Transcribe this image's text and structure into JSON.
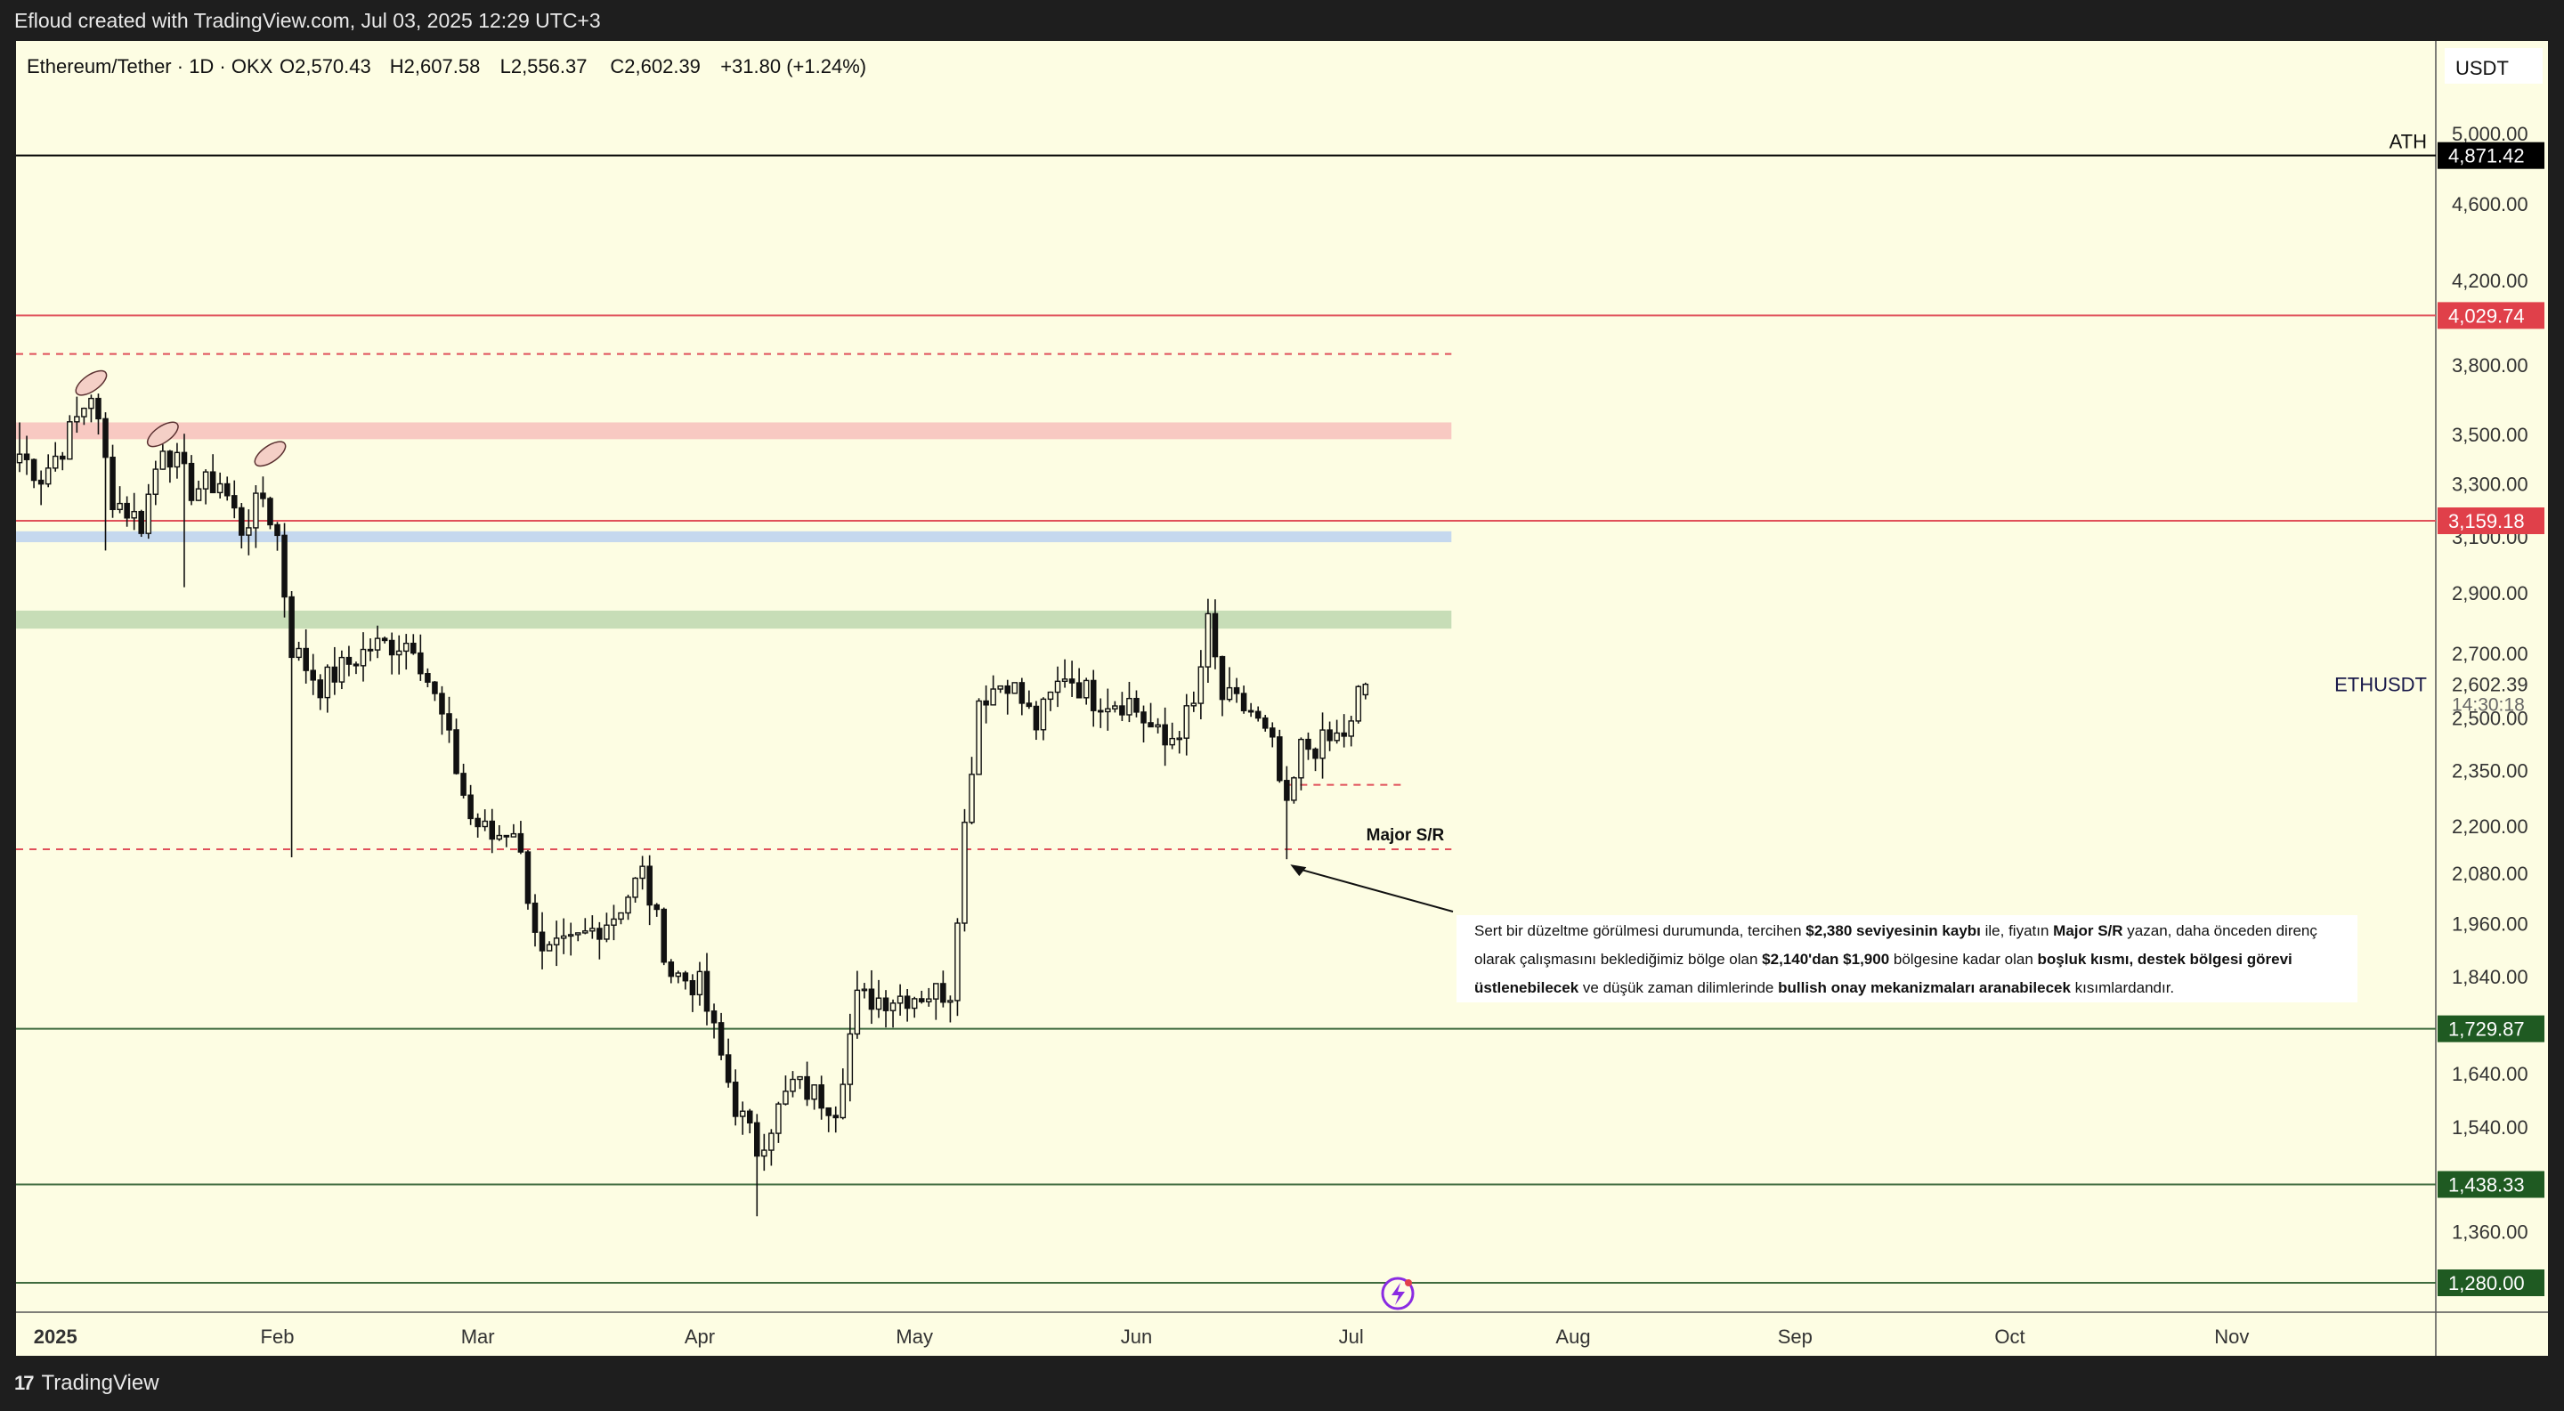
{
  "banner": {
    "text": "Efloud created with TradingView.com, Jul 03, 2025 12:29 UTC+3"
  },
  "footer": {
    "logo_text": "TradingView"
  },
  "currency_box": "USDT",
  "colors": {
    "background": "#fdfde3",
    "candle": "#111111",
    "red_line": "#e0505a",
    "green_line": "#3f6b3f",
    "red_zone": "#f8c9c2",
    "blue_zone": "#c5d8ee",
    "green_zone": "#c7ddb7",
    "label_red": "#e0404a",
    "label_green": "#1f5a22",
    "label_black": "#000000"
  },
  "annotation": {
    "major_sr": "Major S/R",
    "ath": "ATH",
    "symbol_tag": "ETHUSDT",
    "countdown": "14:30:18",
    "note_parts": [
      {
        "t": "Sert bir düzeltme görülmesi durumunda, tercihen ",
        "b": false
      },
      {
        "t": "$2,380 seviyesinin kaybı",
        "b": true
      },
      {
        "t": " ile, fiyatın ",
        "b": false
      },
      {
        "t": "Major S/R",
        "b": true
      },
      {
        "t": " yazan, daha önceden direnç olarak çalışmasını beklediğimiz bölge olan ",
        "b": false
      },
      {
        "t": "$2,140'dan $1,900",
        "b": true
      },
      {
        "t": " bölgesine kadar olan ",
        "b": false
      },
      {
        "t": "boşluk kısmı, destek bölgesi görevi üstlenebilecek",
        "b": true
      },
      {
        "t": " ve düşük zaman dilimlerinde ",
        "b": false
      },
      {
        "t": "bullish onay mekanizmaları aranabilecek",
        "b": true
      },
      {
        "t": " kısımlardandır.",
        "b": false
      }
    ]
  },
  "chart_data": {
    "type": "candlestick",
    "title": "Ethereum/Tether · 1D · OKX",
    "ohlc_header": {
      "open": "O2,570.43",
      "high": "H2,607.58",
      "low": "L2,556.37",
      "close": "C2,602.39",
      "change": "+31.80 (+1.24%)"
    },
    "y_scale": "log",
    "ylim": [
      1260,
      5600
    ],
    "y_ticks": [
      {
        "v": 5000,
        "label": "5,000.00"
      },
      {
        "v": 4600,
        "label": "4,600.00"
      },
      {
        "v": 4200,
        "label": "4,200.00"
      },
      {
        "v": 3800,
        "label": "3,800.00"
      },
      {
        "v": 3500,
        "label": "3,500.00"
      },
      {
        "v": 3300,
        "label": "3,300.00"
      },
      {
        "v": 3100,
        "label": "3,100.00"
      },
      {
        "v": 2900,
        "label": "2,900.00"
      },
      {
        "v": 2700,
        "label": "2,700.00"
      },
      {
        "v": 2500,
        "label": "2,500.00"
      },
      {
        "v": 2350,
        "label": "2,350.00"
      },
      {
        "v": 2200,
        "label": "2,200.00"
      },
      {
        "v": 2080,
        "label": "2,080.00"
      },
      {
        "v": 1960,
        "label": "1,960.00"
      },
      {
        "v": 1840,
        "label": "1,840.00"
      },
      {
        "v": 1640,
        "label": "1,640.00"
      },
      {
        "v": 1540,
        "label": "1,540.00"
      },
      {
        "v": 1360,
        "label": "1,360.00"
      }
    ],
    "price_labels": [
      {
        "v": 4871.42,
        "label": "4,871.42",
        "color": "black"
      },
      {
        "v": 4029.74,
        "label": "4,029.74",
        "color": "red"
      },
      {
        "v": 3159.18,
        "label": "3,159.18",
        "color": "red"
      },
      {
        "v": 2602.39,
        "label": "2,602.39",
        "color": "current"
      },
      {
        "v": 1729.87,
        "label": "1,729.87",
        "color": "green"
      },
      {
        "v": 1438.33,
        "label": "1,438.33",
        "color": "green"
      },
      {
        "v": 1280.0,
        "label": "1,280.00",
        "color": "green"
      }
    ],
    "x_start": "2024-12-27",
    "x_end": "2025-11-30",
    "x_ticks": [
      {
        "date": "2025-01-01",
        "label": "2025",
        "bold": true
      },
      {
        "date": "2025-02-01",
        "label": "Feb"
      },
      {
        "date": "2025-03-01",
        "label": "Mar"
      },
      {
        "date": "2025-04-01",
        "label": "Apr"
      },
      {
        "date": "2025-05-01",
        "label": "May"
      },
      {
        "date": "2025-06-01",
        "label": "Jun"
      },
      {
        "date": "2025-07-01",
        "label": "Jul"
      },
      {
        "date": "2025-08-01",
        "label": "Aug"
      },
      {
        "date": "2025-09-01",
        "label": "Sep"
      },
      {
        "date": "2025-10-01",
        "label": "Oct"
      },
      {
        "date": "2025-11-01",
        "label": "Nov"
      }
    ],
    "horizontal_lines": [
      {
        "v": 4871.42,
        "style": "solid",
        "color": "black"
      },
      {
        "v": 4029.74,
        "style": "solid",
        "color": "red"
      },
      {
        "v": 3159.18,
        "style": "solid",
        "color": "red"
      },
      {
        "v": 1729.87,
        "style": "solid",
        "color": "green"
      },
      {
        "v": 1438.33,
        "style": "solid",
        "color": "green"
      },
      {
        "v": 1280.0,
        "style": "solid",
        "color": "green"
      },
      {
        "v": 3850,
        "style": "dashed",
        "color": "red",
        "to": "2025-07-15"
      },
      {
        "v": 2140,
        "style": "dashed",
        "color": "red",
        "to": "2025-07-15"
      },
      {
        "v": 2310,
        "style": "dashed",
        "color": "red",
        "from": "2025-06-22",
        "to": "2025-07-08"
      }
    ],
    "zones": [
      {
        "from": 3480,
        "to": 3550,
        "color": "red",
        "end": "2025-07-15"
      },
      {
        "from": 3080,
        "to": 3120,
        "color": "blue",
        "end": "2025-07-15"
      },
      {
        "from": 2780,
        "to": 2840,
        "color": "green",
        "end": "2025-07-15"
      }
    ],
    "highlights": [
      {
        "date": "2025-01-06",
        "price": 3720
      },
      {
        "date": "2025-01-16",
        "price": 3500
      },
      {
        "date": "2025-01-31",
        "price": 3420
      }
    ],
    "anchors": [
      [
        "2024-12-27",
        3420
      ],
      [
        "2024-12-30",
        3330
      ],
      [
        "2025-01-02",
        3450
      ],
      [
        "2025-01-06",
        3680
      ],
      [
        "2025-01-09",
        3250
      ],
      [
        "2025-01-13",
        3150
      ],
      [
        "2025-01-16",
        3470
      ],
      [
        "2025-01-20",
        3280
      ],
      [
        "2025-01-24",
        3310
      ],
      [
        "2025-01-27",
        3130
      ],
      [
        "2025-01-30",
        3250
      ],
      [
        "2025-02-01",
        3100
      ],
      [
        "2025-02-03",
        2720
      ],
      [
        "2025-02-07",
        2600
      ],
      [
        "2025-02-14",
        2720
      ],
      [
        "2025-02-20",
        2740
      ],
      [
        "2025-02-24",
        2500
      ],
      [
        "2025-02-28",
        2220
      ],
      [
        "2025-03-03",
        2170
      ],
      [
        "2025-03-06",
        2200
      ],
      [
        "2025-03-10",
        1880
      ],
      [
        "2025-03-14",
        1910
      ],
      [
        "2025-03-20",
        1980
      ],
      [
        "2025-03-24",
        2080
      ],
      [
        "2025-03-28",
        1850
      ],
      [
        "2025-04-01",
        1820
      ],
      [
        "2025-04-06",
        1580
      ],
      [
        "2025-04-09",
        1500
      ],
      [
        "2025-04-14",
        1620
      ],
      [
        "2025-04-20",
        1580
      ],
      [
        "2025-04-23",
        1790
      ],
      [
        "2025-04-30",
        1800
      ],
      [
        "2025-05-06",
        1810
      ],
      [
        "2025-05-08",
        2200
      ],
      [
        "2025-05-10",
        2560
      ],
      [
        "2025-05-14",
        2620
      ],
      [
        "2025-05-18",
        2480
      ],
      [
        "2025-05-22",
        2640
      ],
      [
        "2025-05-26",
        2560
      ],
      [
        "2025-05-31",
        2550
      ],
      [
        "2025-06-05",
        2420
      ],
      [
        "2025-06-09",
        2530
      ],
      [
        "2025-06-11",
        2790
      ],
      [
        "2025-06-13",
        2560
      ],
      [
        "2025-06-17",
        2520
      ],
      [
        "2025-06-20",
        2410
      ],
      [
        "2025-06-22",
        2230
      ],
      [
        "2025-06-24",
        2410
      ],
      [
        "2025-06-28",
        2430
      ],
      [
        "2025-07-01",
        2470
      ],
      [
        "2025-07-02",
        2570
      ],
      [
        "2025-07-03",
        2602.39
      ]
    ]
  }
}
